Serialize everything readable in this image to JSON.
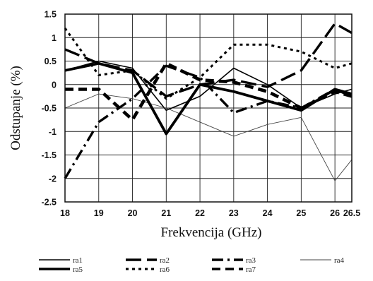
{
  "chart_data": {
    "type": "line",
    "title": "",
    "xlabel": "Frekvencija (GHz)",
    "ylabel": "Odstupanje (%)",
    "xlim": [
      18,
      26.5
    ],
    "ylim": [
      -2.5,
      1.5
    ],
    "x": [
      18,
      19,
      20,
      21,
      22,
      23,
      24,
      25,
      26,
      26.5
    ],
    "x_ticks": [
      "18",
      "19",
      "20",
      "21",
      "22",
      "23",
      "24",
      "25",
      "26",
      "26.5"
    ],
    "y_ticks": [
      1.5,
      1,
      0.5,
      0,
      -0.5,
      -1,
      -1.5,
      -2,
      -2.5
    ],
    "y_tick_labels": [
      "1.5",
      "1",
      "0.5",
      "0",
      "-0.5",
      "-1",
      "-1.5",
      "-2",
      "-2.5"
    ],
    "grid": true,
    "legend_position": "bottom",
    "series": [
      {
        "name": "ra1",
        "style": "solid-thin",
        "values": [
          0.3,
          0.5,
          0.35,
          -0.55,
          -0.25,
          0.35,
          0.0,
          -0.5,
          -0.2,
          -0.1
        ]
      },
      {
        "name": "ra2",
        "style": "long-dash",
        "values": [
          0.75,
          0.45,
          0.3,
          -0.25,
          0.0,
          0.1,
          -0.05,
          0.3,
          1.3,
          1.1
        ]
      },
      {
        "name": "ra3",
        "style": "dash-dot",
        "values": [
          -2.0,
          -0.8,
          -0.3,
          0.4,
          0.15,
          -0.6,
          -0.35,
          -0.5,
          -0.1,
          -0.25
        ]
      },
      {
        "name": "ra4",
        "style": "solid-hairline",
        "values": [
          -0.5,
          -0.2,
          -0.3,
          -0.5,
          -0.8,
          -1.1,
          -0.85,
          -0.7,
          -2.05,
          -1.6
        ]
      },
      {
        "name": "ra5",
        "style": "solid-thick",
        "values": [
          0.3,
          0.45,
          0.25,
          -1.05,
          0.0,
          -0.15,
          -0.35,
          -0.55,
          -0.1,
          -0.2
        ]
      },
      {
        "name": "ra6",
        "style": "short-dot",
        "values": [
          1.2,
          0.2,
          0.3,
          -0.3,
          0.15,
          0.85,
          0.85,
          0.7,
          0.35,
          0.45
        ]
      },
      {
        "name": "ra7",
        "style": "heavy-dash",
        "values": [
          -0.1,
          -0.1,
          -0.75,
          0.45,
          0.1,
          0.05,
          -0.15,
          -0.5,
          -0.15,
          -0.25
        ]
      }
    ],
    "legend_labels": [
      "ra1",
      "ra2",
      "ra3",
      "ra4",
      "ra5",
      "ra6",
      "ra7"
    ]
  }
}
